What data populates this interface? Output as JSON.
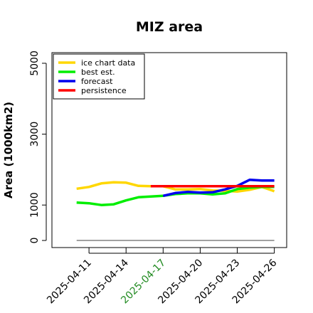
{
  "chart_data": {
    "type": "line",
    "title": "MIZ area",
    "xlabel": "",
    "ylabel": "Area (1000km2)",
    "x_ticks": [
      {
        "date": "2025-04-11",
        "color": "#000000"
      },
      {
        "date": "2025-04-14",
        "color": "#000000"
      },
      {
        "date": "2025-04-17",
        "color": "#228B22"
      },
      {
        "date": "2025-04-20",
        "color": "#000000"
      },
      {
        "date": "2025-04-23",
        "color": "#000000"
      },
      {
        "date": "2025-04-26",
        "color": "#000000"
      }
    ],
    "y_ticks": [
      0,
      1000,
      3000,
      5000
    ],
    "xlim": [
      "2025-04-08",
      "2025-04-27"
    ],
    "ylim": [
      -200,
      5300
    ],
    "grid": false,
    "legend_position": "top-left",
    "reference_line": {
      "y": 0,
      "color": "#808080"
    },
    "series": [
      {
        "name": "ice chart data",
        "color": "#FFD700",
        "x": [
          "2025-04-10",
          "2025-04-11",
          "2025-04-12",
          "2025-04-13",
          "2025-04-14",
          "2025-04-15",
          "2025-04-16",
          "2025-04-17",
          "2025-04-18",
          "2025-04-19",
          "2025-04-20",
          "2025-04-21",
          "2025-04-22",
          "2025-04-23",
          "2025-04-24",
          "2025-04-25",
          "2025-04-26"
        ],
        "y": [
          1460,
          1510,
          1610,
          1640,
          1630,
          1540,
          1530,
          1530,
          1440,
          1440,
          1450,
          1410,
          1400,
          1380,
          1430,
          1510,
          1390
        ]
      },
      {
        "name": "best est.",
        "color": "#00EE00",
        "x": [
          "2025-04-10",
          "2025-04-11",
          "2025-04-12",
          "2025-04-13",
          "2025-04-14",
          "2025-04-15",
          "2025-04-16",
          "2025-04-17",
          "2025-04-18",
          "2025-04-19",
          "2025-04-20",
          "2025-04-21",
          "2025-04-22",
          "2025-04-23",
          "2025-04-24",
          "2025-04-25",
          "2025-04-26"
        ],
        "y": [
          1070,
          1050,
          1000,
          1020,
          1130,
          1220,
          1240,
          1260,
          1310,
          1330,
          1330,
          1300,
          1330,
          1450,
          1490,
          1510,
          1510
        ]
      },
      {
        "name": "forecast",
        "color": "#0000EE",
        "x": [
          "2025-04-17",
          "2025-04-18",
          "2025-04-19",
          "2025-04-20",
          "2025-04-21",
          "2025-04-22",
          "2025-04-23",
          "2025-04-24",
          "2025-04-25",
          "2025-04-26"
        ],
        "y": [
          1260,
          1340,
          1370,
          1350,
          1360,
          1440,
          1540,
          1710,
          1690,
          1690
        ]
      },
      {
        "name": "persistence",
        "color": "#FF0000",
        "x": [
          "2025-04-16",
          "2025-04-26"
        ],
        "y": [
          1530,
          1530
        ]
      }
    ]
  }
}
